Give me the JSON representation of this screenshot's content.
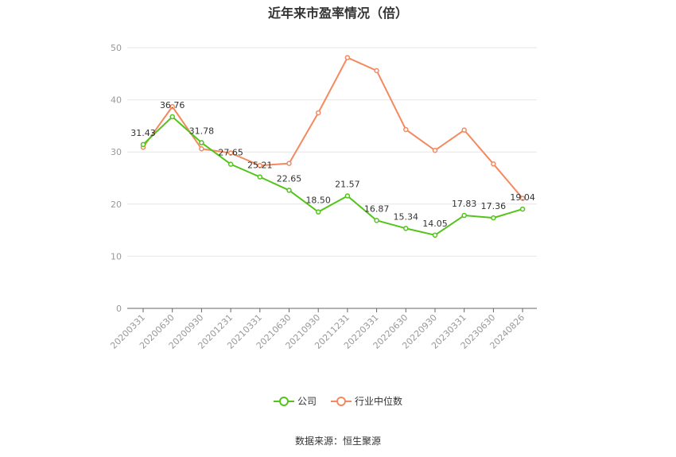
{
  "chart_data": {
    "type": "line",
    "title": "近年来市盈率情况（倍）",
    "categories": [
      "20200331",
      "20200630",
      "20200930",
      "20201231",
      "20210331",
      "20210630",
      "20210930",
      "20211231",
      "20220331",
      "20220630",
      "20220930",
      "20230331",
      "20230630",
      "20240826"
    ],
    "ylim": [
      0,
      50
    ],
    "yticks": [
      0,
      10,
      20,
      30,
      40,
      50
    ],
    "grid": true,
    "legend_position": "bottom",
    "series": [
      {
        "name": "公司",
        "color": "#52c41a",
        "values": [
          31.43,
          36.76,
          31.78,
          27.65,
          25.21,
          22.65,
          18.5,
          21.57,
          16.87,
          15.34,
          14.05,
          17.83,
          17.36,
          19.04
        ],
        "labels": [
          "31.43",
          "36.76",
          "31.78",
          "27.65",
          "25.21",
          "22.65",
          "18.50",
          "21.57",
          "16.87",
          "15.34",
          "14.05",
          "17.83",
          "17.36",
          "19.04"
        ]
      },
      {
        "name": "行业中位数",
        "color": "#f4895f",
        "values": [
          30.9,
          38.7,
          30.6,
          29.8,
          27.4,
          27.8,
          37.5,
          48.1,
          45.6,
          34.3,
          30.3,
          34.2,
          27.7,
          21.1
        ]
      }
    ],
    "source": "数据来源：恒生聚源"
  }
}
